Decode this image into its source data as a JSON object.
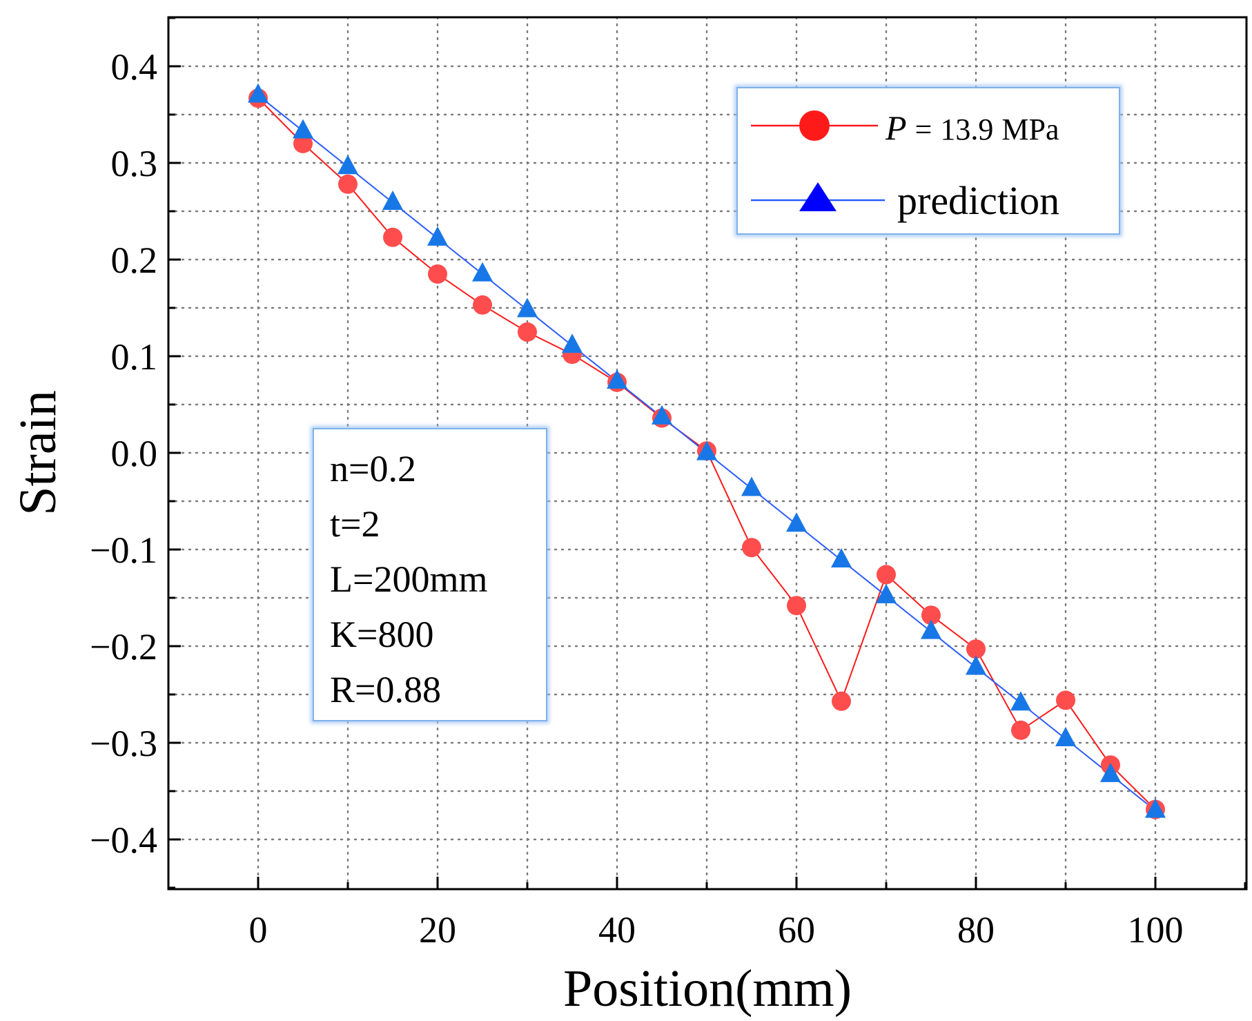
{
  "chart_data": {
    "type": "line",
    "title": "",
    "xlabel": "Position(mm)",
    "ylabel": "Strain",
    "xlim": [
      -10,
      110
    ],
    "ylim": [
      -0.45,
      0.45
    ],
    "grid": true,
    "x_ticks": [
      0,
      20,
      40,
      60,
      80,
      100
    ],
    "x_tick_labels": [
      "0",
      "20",
      "40",
      "60",
      "80",
      "100"
    ],
    "y_ticks": [
      0.4,
      0.3,
      0.2,
      0.1,
      0.0,
      -0.1,
      -0.2,
      -0.3,
      -0.4
    ],
    "y_tick_labels": [
      "0.4",
      "0.3",
      "0.2",
      "0.1",
      "0.0",
      "−0.1",
      "−0.2",
      "−0.3",
      "−0.4"
    ],
    "x": [
      0,
      5,
      10,
      15,
      20,
      25,
      30,
      35,
      40,
      45,
      50,
      55,
      60,
      65,
      70,
      75,
      80,
      85,
      90,
      95,
      100
    ],
    "series": [
      {
        "name": "P = 13.9 MPa",
        "marker": "circle",
        "color": "#ff1a1a",
        "marker_color": "#ff4d4d",
        "values": [
          0.367,
          0.32,
          0.278,
          0.223,
          0.185,
          0.153,
          0.125,
          0.102,
          0.073,
          0.036,
          0.002,
          -0.098,
          -0.158,
          -0.257,
          -0.126,
          -0.168,
          -0.203,
          -0.287,
          -0.256,
          -0.323,
          -0.369
        ]
      },
      {
        "name": "prediction",
        "marker": "triangle",
        "color": "#2a5cff",
        "marker_color": "#1877e6",
        "values": [
          0.37,
          0.333,
          0.296,
          0.259,
          0.222,
          0.185,
          0.148,
          0.111,
          0.074,
          0.037,
          0.0,
          -0.037,
          -0.074,
          -0.111,
          -0.148,
          -0.185,
          -0.222,
          -0.259,
          -0.296,
          -0.333,
          -0.37
        ]
      }
    ],
    "legend": {
      "position": "top-right",
      "entries": [
        {
          "symbol": "P",
          "equals": "=",
          "value": "13.9",
          "unit": "MPa"
        },
        {
          "label": "prediction"
        }
      ]
    },
    "annotation": {
      "position": "center-left",
      "lines": [
        "n=0.2",
        "t=2",
        "L=200mm",
        "K=800",
        "R=0.88"
      ]
    }
  }
}
